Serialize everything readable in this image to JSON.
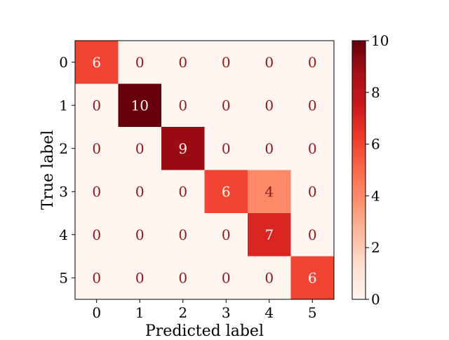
{
  "chart_data": {
    "type": "heatmap",
    "title": "",
    "xlabel": "Predicted label",
    "ylabel": "True label",
    "x_categories": [
      "0",
      "1",
      "2",
      "3",
      "4",
      "5"
    ],
    "y_categories": [
      "0",
      "1",
      "2",
      "3",
      "4",
      "5"
    ],
    "values": [
      [
        6,
        0,
        0,
        0,
        0,
        0
      ],
      [
        0,
        10,
        0,
        0,
        0,
        0
      ],
      [
        0,
        0,
        9,
        0,
        0,
        0
      ],
      [
        0,
        0,
        0,
        6,
        4,
        0
      ],
      [
        0,
        0,
        0,
        0,
        7,
        0
      ],
      [
        0,
        0,
        0,
        0,
        0,
        6
      ]
    ],
    "colormap": "Reds",
    "vmin": 0,
    "vmax": 10,
    "colorbar": {
      "ticks": [
        0,
        2,
        4,
        6,
        8,
        10
      ],
      "tick_labels": [
        "0",
        "2",
        "4",
        "6",
        "8",
        "10"
      ]
    },
    "grid": false
  }
}
